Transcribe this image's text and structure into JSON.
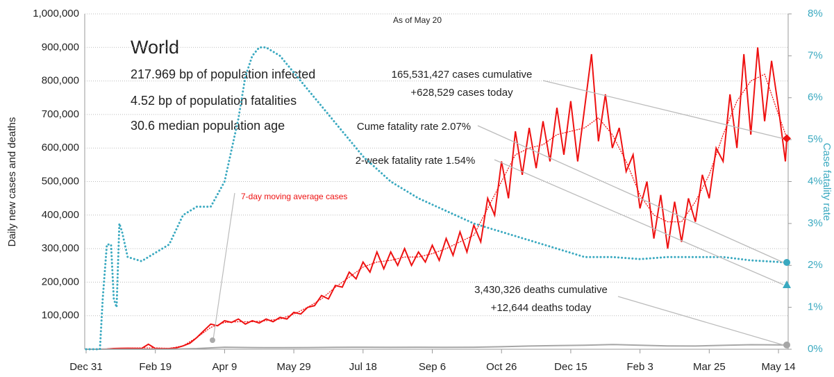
{
  "chart_data": {
    "type": "line",
    "subtitle": "As of May 20",
    "title": "World",
    "info": [
      "217.969 bp of population infected",
      "4.52 bp of population fatalities",
      "30.6 median population age"
    ],
    "annotations": [
      "165,531,427 cases cumulative",
      "+628,529 cases today",
      "Cume fatality rate 2.07%",
      "2-week fatality rate 1.54%",
      "3,430,326 deaths cumulative",
      "+12,644 deaths today"
    ],
    "ylabel": "Daily new cases and deaths",
    "y2label": "Case fatality rate",
    "xlim": [
      -1,
      507
    ],
    "xticks": [
      {
        "value": 0,
        "label": "Dec 31"
      },
      {
        "value": 50,
        "label": "Feb 19"
      },
      {
        "value": 100,
        "label": "Apr 9"
      },
      {
        "value": 150,
        "label": "May 29"
      },
      {
        "value": 200,
        "label": "Jul 18"
      },
      {
        "value": 250,
        "label": "Sep 6"
      },
      {
        "value": 300,
        "label": "Oct 26"
      },
      {
        "value": 350,
        "label": "Dec 15"
      },
      {
        "value": 400,
        "label": "Feb 3"
      },
      {
        "value": 450,
        "label": "Mar 25"
      },
      {
        "value": 500,
        "label": "May 14"
      }
    ],
    "ylim": [
      0,
      1000000
    ],
    "yticks": [
      {
        "value": 100000,
        "label": "100,000"
      },
      {
        "value": 200000,
        "label": "200,000"
      },
      {
        "value": 300000,
        "label": "300,000"
      },
      {
        "value": 400000,
        "label": "400,000"
      },
      {
        "value": 500000,
        "label": "500,000"
      },
      {
        "value": 600000,
        "label": "600,000"
      },
      {
        "value": 700000,
        "label": "700,000"
      },
      {
        "value": 800000,
        "label": "800,000"
      },
      {
        "value": 900000,
        "label": "900,000"
      },
      {
        "value": 1000000,
        "label": "1,000,000"
      }
    ],
    "y2lim": [
      0,
      8
    ],
    "y2ticks": [
      {
        "value": 0,
        "label": "0%"
      },
      {
        "value": 1,
        "label": "1%"
      },
      {
        "value": 2,
        "label": "2%"
      },
      {
        "value": 3,
        "label": "3%"
      },
      {
        "value": 4,
        "label": "4%"
      },
      {
        "value": 5,
        "label": "5%"
      },
      {
        "value": 6,
        "label": "6%"
      },
      {
        "value": 7,
        "label": "7%"
      },
      {
        "value": 8,
        "label": "8%"
      }
    ],
    "grid": true,
    "series": [
      {
        "color": "#ee1111",
        "style": "solid",
        "end_marker": "diamond",
        "x": [
          0,
          5,
          10,
          15,
          20,
          25,
          30,
          35,
          40,
          45,
          50,
          55,
          60,
          65,
          70,
          75,
          80,
          85,
          90,
          95,
          100,
          105,
          110,
          115,
          120,
          125,
          130,
          135,
          140,
          145,
          150,
          155,
          160,
          165,
          170,
          175,
          180,
          185,
          190,
          195,
          200,
          205,
          210,
          215,
          220,
          225,
          230,
          235,
          240,
          245,
          250,
          255,
          260,
          265,
          270,
          275,
          280,
          285,
          290,
          295,
          300,
          305,
          310,
          315,
          320,
          325,
          330,
          335,
          340,
          345,
          350,
          355,
          360,
          365,
          370,
          375,
          380,
          385,
          390,
          395,
          400,
          405,
          410,
          415,
          420,
          425,
          430,
          435,
          440,
          445,
          450,
          455,
          460,
          465,
          470,
          475,
          480,
          485,
          490,
          495,
          500,
          505,
          506
        ],
        "values": [
          0,
          0,
          100,
          500,
          2000,
          2500,
          3000,
          2500,
          2000,
          15000,
          2000,
          1500,
          2000,
          4000,
          10000,
          18000,
          35000,
          55000,
          75000,
          70000,
          85000,
          80000,
          90000,
          75000,
          85000,
          78000,
          90000,
          82000,
          95000,
          90000,
          110000,
          105000,
          125000,
          130000,
          160000,
          150000,
          190000,
          185000,
          230000,
          210000,
          260000,
          230000,
          290000,
          240000,
          290000,
          250000,
          300000,
          250000,
          290000,
          260000,
          310000,
          265000,
          330000,
          280000,
          350000,
          290000,
          370000,
          320000,
          450000,
          400000,
          560000,
          450000,
          650000,
          520000,
          660000,
          540000,
          680000,
          560000,
          720000,
          580000,
          740000,
          560000,
          720000,
          880000,
          620000,
          760000,
          600000,
          660000,
          530000,
          580000,
          420000,
          500000,
          330000,
          460000,
          300000,
          440000,
          320000,
          450000,
          380000,
          520000,
          450000,
          600000,
          560000,
          760000,
          600000,
          880000,
          640000,
          900000,
          680000,
          860000,
          720000,
          560000,
          628529
        ]
      },
      {
        "name": "7-day moving average cases",
        "color": "#ee1111",
        "style": "dotted",
        "x": [
          0,
          10,
          20,
          30,
          40,
          50,
          60,
          70,
          80,
          90,
          100,
          110,
          120,
          130,
          140,
          150,
          160,
          170,
          180,
          190,
          200,
          210,
          220,
          230,
          240,
          250,
          260,
          270,
          280,
          290,
          300,
          310,
          320,
          330,
          340,
          350,
          360,
          370,
          380,
          390,
          400,
          410,
          420,
          430,
          440,
          450,
          460,
          470,
          480,
          490,
          500,
          506
        ],
        "values": [
          0,
          100,
          2000,
          2800,
          4000,
          4000,
          2500,
          10000,
          35000,
          65000,
          80000,
          82000,
          82000,
          85000,
          90000,
          105000,
          125000,
          150000,
          185000,
          215000,
          245000,
          260000,
          265000,
          275000,
          275000,
          285000,
          300000,
          320000,
          340000,
          420000,
          500000,
          580000,
          600000,
          610000,
          640000,
          650000,
          660000,
          690000,
          640000,
          560000,
          460000,
          400000,
          380000,
          380000,
          440000,
          520000,
          640000,
          740000,
          800000,
          820000,
          700000,
          630000
        ]
      },
      {
        "color": "#a6a6a6",
        "style": "solid",
        "end_marker": "circle",
        "x": [
          0,
          20,
          40,
          60,
          80,
          100,
          120,
          140,
          160,
          180,
          200,
          220,
          240,
          260,
          280,
          300,
          320,
          340,
          360,
          380,
          400,
          420,
          440,
          460,
          480,
          500,
          506
        ],
        "values": [
          0,
          50,
          100,
          100,
          2000,
          6000,
          5000,
          4500,
          5000,
          5500,
          6000,
          5500,
          6000,
          5500,
          6000,
          7500,
          9500,
          11000,
          12000,
          14000,
          12000,
          10000,
          9500,
          11500,
          13500,
          13000,
          12644
        ]
      },
      {
        "color": "#3aa9c0",
        "style": "dotted",
        "axis": "y2",
        "end_marker": "circle",
        "x": [
          0,
          10,
          12,
          15,
          18,
          20,
          22,
          24,
          26,
          30,
          40,
          50,
          60,
          70,
          80,
          90,
          100,
          110,
          115,
          120,
          125,
          130,
          140,
          150,
          160,
          170,
          180,
          190,
          200,
          220,
          240,
          260,
          280,
          300,
          320,
          340,
          360,
          380,
          400,
          420,
          440,
          460,
          480,
          506
        ],
        "values": [
          0,
          0,
          1.2,
          2.5,
          2.5,
          1.2,
          1.0,
          3.0,
          2.8,
          2.2,
          2.1,
          2.3,
          2.5,
          3.2,
          3.4,
          3.4,
          4.0,
          5.5,
          6.5,
          7.0,
          7.2,
          7.2,
          7.0,
          6.6,
          6.2,
          5.8,
          5.4,
          5.0,
          4.6,
          4.0,
          3.6,
          3.3,
          3.0,
          2.8,
          2.6,
          2.4,
          2.2,
          2.2,
          2.15,
          2.2,
          2.2,
          2.2,
          2.12,
          2.07
        ]
      }
    ],
    "points": [
      {
        "x": 506,
        "value": 1.54,
        "axis": "y2",
        "shape": "triangle",
        "color": "#3aa9c0"
      }
    ]
  }
}
